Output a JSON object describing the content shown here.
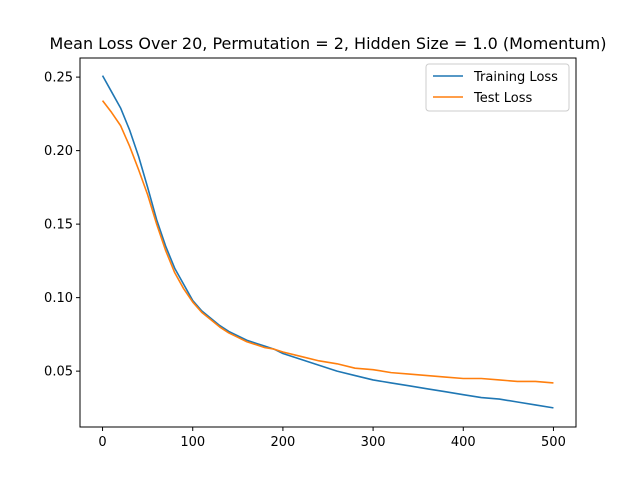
{
  "chart_data": {
    "type": "line",
    "title": "Mean Loss Over 20, Permutation = 2, Hidden Size = 1.0 (Momentum)",
    "xlabel": "",
    "ylabel": "",
    "xlim": [
      -25,
      525
    ],
    "ylim": [
      0.012,
      0.263
    ],
    "xticks": [
      0,
      100,
      200,
      300,
      400,
      500
    ],
    "yticks": [
      0.05,
      0.1,
      0.15,
      0.2,
      0.25
    ],
    "xtick_labels": [
      "0",
      "100",
      "200",
      "300",
      "400",
      "500"
    ],
    "ytick_labels": [
      "0.05",
      "0.10",
      "0.15",
      "0.20",
      "0.25"
    ],
    "grid": false,
    "legend_position": "top-right",
    "series": [
      {
        "name": "Training Loss",
        "color": "#1f77b4",
        "x": [
          0,
          10,
          20,
          30,
          40,
          50,
          60,
          70,
          80,
          90,
          100,
          110,
          120,
          130,
          140,
          150,
          160,
          170,
          180,
          190,
          200,
          220,
          240,
          260,
          280,
          300,
          320,
          340,
          360,
          380,
          400,
          420,
          440,
          460,
          480,
          500
        ],
        "y": [
          0.251,
          0.24,
          0.229,
          0.214,
          0.196,
          0.175,
          0.153,
          0.135,
          0.12,
          0.109,
          0.098,
          0.091,
          0.086,
          0.081,
          0.077,
          0.074,
          0.071,
          0.069,
          0.067,
          0.065,
          0.062,
          0.058,
          0.054,
          0.05,
          0.047,
          0.044,
          0.042,
          0.04,
          0.038,
          0.036,
          0.034,
          0.032,
          0.031,
          0.029,
          0.027,
          0.025
        ]
      },
      {
        "name": "Test Loss",
        "color": "#ff7f0e",
        "x": [
          0,
          10,
          20,
          30,
          40,
          50,
          60,
          70,
          80,
          90,
          100,
          110,
          120,
          130,
          140,
          150,
          160,
          170,
          180,
          190,
          200,
          220,
          240,
          260,
          280,
          300,
          320,
          340,
          360,
          380,
          400,
          420,
          440,
          460,
          480,
          500
        ],
        "y": [
          0.234,
          0.226,
          0.217,
          0.203,
          0.187,
          0.17,
          0.15,
          0.132,
          0.117,
          0.106,
          0.097,
          0.09,
          0.085,
          0.08,
          0.076,
          0.073,
          0.07,
          0.068,
          0.066,
          0.065,
          0.063,
          0.06,
          0.057,
          0.055,
          0.052,
          0.051,
          0.049,
          0.048,
          0.047,
          0.046,
          0.045,
          0.045,
          0.044,
          0.043,
          0.043,
          0.042
        ]
      }
    ]
  }
}
